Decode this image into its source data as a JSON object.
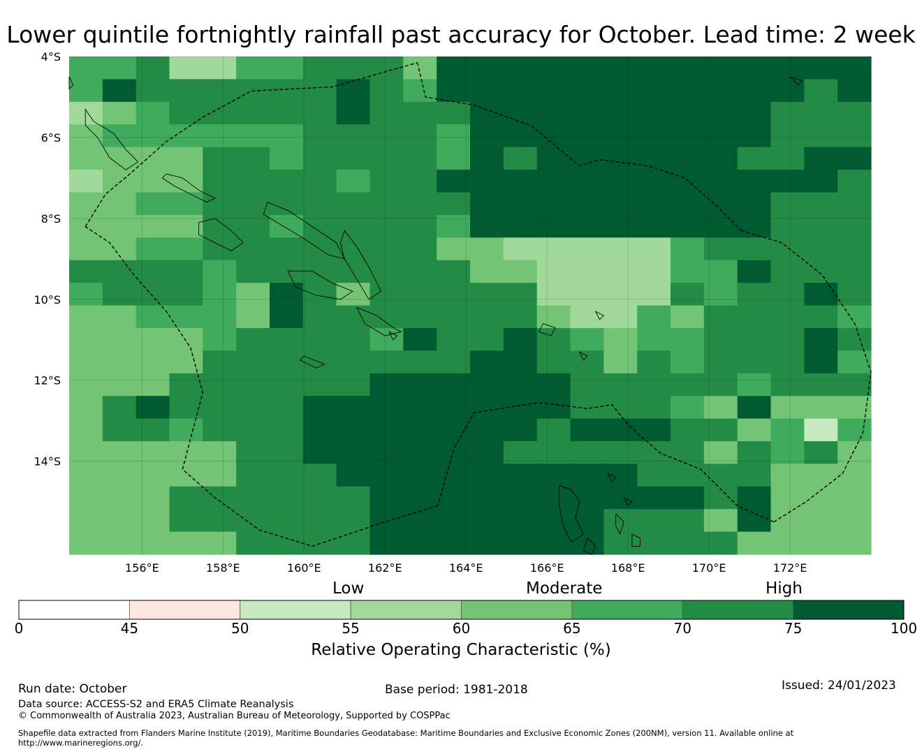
{
  "title": "Lower quintile fortnightly rainfall past accuracy for October. Lead time: 2 week",
  "map": {
    "lat_labels": [
      "4°S",
      "6°S",
      "8°S",
      "10°S",
      "12°S",
      "14°S"
    ],
    "lon_labels": [
      "156°E",
      "158°E",
      "160°E",
      "162°E",
      "164°E",
      "166°E",
      "168°E",
      "170°E",
      "172°E"
    ],
    "lat_ticks": [
      4,
      6,
      8,
      10,
      12,
      14
    ],
    "lon_ticks": [
      156,
      158,
      160,
      162,
      164,
      166,
      168,
      170,
      172
    ],
    "extent": {
      "lon_min": 154.2,
      "lon_max": 174.0,
      "lat_top": 4.0,
      "lat_bottom": 16.3
    },
    "grid_cols": 24,
    "grid_rows": 22,
    "grid_codes": [
      "556335566647777777777777",
      "576666667657777777777767",
      "345666667666777777777666",
      "455555566665777777777666",
      "444466566665767777776677",
      "344466665667777777777776",
      "445566666666777777777666",
      "444466566665777777777666",
      "445566666664433333566666",
      "666656666666443333557666",
      "566654764666663333656676",
      "445554766666664335466665",
      "444456666576676545566676",
      "444466666666776646566675",
      "444666666777777666665666",
      "467666677777777666547444",
      "466566677777776777664525",
      "444446677777766666646564",
      "444446667777777776666444",
      "444666666777777777767444",
      "444666666777777766647444",
      "444446666777777766664444"
    ],
    "eez_lines": [
      [
        [
          162.8,
          4.15
        ],
        [
          163.0,
          5.0
        ],
        [
          164.2,
          5.2
        ],
        [
          165.6,
          5.7
        ],
        [
          166.2,
          6.2
        ],
        [
          166.8,
          6.7
        ],
        [
          167.3,
          6.55
        ],
        [
          168.5,
          6.7
        ],
        [
          169.4,
          7.0
        ],
        [
          170.2,
          7.7
        ],
        [
          170.8,
          8.3
        ]
      ],
      [
        [
          170.8,
          8.3
        ],
        [
          171.8,
          8.6
        ],
        [
          172.8,
          9.4
        ],
        [
          173.6,
          10.6
        ],
        [
          174.0,
          11.8
        ],
        [
          173.8,
          13.3
        ],
        [
          173.3,
          14.3
        ],
        [
          172.4,
          15.0
        ],
        [
          171.6,
          15.5
        ]
      ],
      [
        [
          171.6,
          15.5
        ],
        [
          170.7,
          15.1
        ],
        [
          169.8,
          14.2
        ],
        [
          168.8,
          13.8
        ],
        [
          168.0,
          13.1
        ],
        [
          167.6,
          12.6
        ],
        [
          167.0,
          12.7
        ],
        [
          165.8,
          12.55
        ],
        [
          164.2,
          12.8
        ],
        [
          163.7,
          13.7
        ],
        [
          163.3,
          15.1
        ]
      ],
      [
        [
          163.3,
          15.1
        ],
        [
          162.0,
          15.5
        ],
        [
          160.2,
          16.1
        ],
        [
          158.9,
          15.7
        ],
        [
          157.8,
          14.9
        ],
        [
          157.0,
          14.2
        ],
        [
          157.5,
          12.3
        ],
        [
          157.2,
          11.2
        ],
        [
          156.6,
          10.3
        ],
        [
          155.8,
          9.4
        ],
        [
          155.2,
          8.6
        ],
        [
          154.6,
          8.2
        ]
      ],
      [
        [
          154.6,
          8.2
        ],
        [
          155.1,
          7.4
        ],
        [
          155.7,
          6.9
        ],
        [
          156.6,
          6.1
        ],
        [
          157.5,
          5.5
        ],
        [
          158.7,
          4.85
        ],
        [
          160.7,
          4.75
        ],
        [
          162.8,
          4.15
        ]
      ]
    ],
    "islands": [
      [
        [
          154.6,
          5.3
        ],
        [
          154.8,
          5.6
        ],
        [
          155.3,
          5.9
        ],
        [
          155.6,
          6.3
        ],
        [
          155.9,
          6.6
        ],
        [
          155.6,
          6.8
        ],
        [
          155.2,
          6.5
        ],
        [
          154.9,
          6.0
        ],
        [
          154.6,
          5.7
        ]
      ],
      [
        [
          156.6,
          6.9
        ],
        [
          157.0,
          7.0
        ],
        [
          157.4,
          7.3
        ],
        [
          157.8,
          7.5
        ],
        [
          157.6,
          7.6
        ],
        [
          157.2,
          7.4
        ],
        [
          156.8,
          7.2
        ],
        [
          156.5,
          7.0
        ]
      ],
      [
        [
          157.4,
          8.1
        ],
        [
          157.8,
          8.0
        ],
        [
          158.2,
          8.3
        ],
        [
          158.5,
          8.6
        ],
        [
          158.2,
          8.8
        ],
        [
          157.8,
          8.6
        ],
        [
          157.4,
          8.4
        ]
      ],
      [
        [
          159.1,
          7.6
        ],
        [
          159.6,
          7.8
        ],
        [
          160.2,
          8.2
        ],
        [
          160.8,
          8.6
        ],
        [
          161.0,
          9.0
        ],
        [
          160.6,
          8.9
        ],
        [
          160.0,
          8.5
        ],
        [
          159.5,
          8.2
        ],
        [
          159.0,
          7.9
        ]
      ],
      [
        [
          161.0,
          8.3
        ],
        [
          161.3,
          8.7
        ],
        [
          161.6,
          9.2
        ],
        [
          161.9,
          9.8
        ],
        [
          161.6,
          10.0
        ],
        [
          161.3,
          9.5
        ],
        [
          161.0,
          9.0
        ],
        [
          160.9,
          8.6
        ]
      ],
      [
        [
          159.6,
          9.3
        ],
        [
          160.2,
          9.3
        ],
        [
          160.7,
          9.6
        ],
        [
          161.2,
          9.8
        ],
        [
          160.9,
          10.0
        ],
        [
          160.3,
          9.9
        ],
        [
          159.8,
          9.7
        ]
      ],
      [
        [
          161.3,
          10.2
        ],
        [
          161.8,
          10.4
        ],
        [
          162.2,
          10.7
        ],
        [
          162.4,
          10.8
        ],
        [
          162.0,
          10.9
        ],
        [
          161.5,
          10.6
        ]
      ],
      [
        [
          166.3,
          14.6
        ],
        [
          166.6,
          14.7
        ],
        [
          166.8,
          15.0
        ],
        [
          166.7,
          15.4
        ],
        [
          166.9,
          15.8
        ],
        [
          166.6,
          16.0
        ],
        [
          166.4,
          15.6
        ],
        [
          166.3,
          15.1
        ]
      ],
      [
        [
          167.0,
          15.9
        ],
        [
          167.2,
          16.1
        ],
        [
          167.1,
          16.3
        ],
        [
          166.9,
          16.2
        ]
      ],
      [
        [
          168.1,
          15.8
        ],
        [
          168.3,
          15.9
        ],
        [
          168.3,
          16.1
        ],
        [
          168.1,
          16.1
        ]
      ],
      [
        [
          167.7,
          15.3
        ],
        [
          167.9,
          15.5
        ],
        [
          167.8,
          15.8
        ],
        [
          167.7,
          15.6
        ]
      ],
      [
        [
          165.9,
          10.6
        ],
        [
          166.2,
          10.7
        ],
        [
          166.1,
          10.9
        ],
        [
          165.8,
          10.8
        ]
      ],
      [
        [
          166.8,
          11.3
        ],
        [
          167.0,
          11.4
        ],
        [
          166.9,
          11.5
        ]
      ],
      [
        [
          160.0,
          11.4
        ],
        [
          160.5,
          11.6
        ],
        [
          160.3,
          11.7
        ],
        [
          159.9,
          11.5
        ]
      ],
      [
        [
          167.5,
          14.3
        ],
        [
          167.7,
          14.4
        ],
        [
          167.6,
          14.5
        ]
      ],
      [
        [
          167.9,
          14.9
        ],
        [
          168.1,
          15.0
        ],
        [
          168.0,
          15.1
        ]
      ],
      [
        [
          172.0,
          4.5
        ],
        [
          172.3,
          4.6
        ],
        [
          172.2,
          4.7
        ]
      ],
      [
        [
          162.1,
          10.8
        ],
        [
          162.3,
          10.9
        ],
        [
          162.2,
          11.0
        ]
      ],
      [
        [
          167.2,
          10.3
        ],
        [
          167.4,
          10.4
        ],
        [
          167.3,
          10.5
        ]
      ],
      [
        [
          154.2,
          4.5
        ],
        [
          154.3,
          4.7
        ],
        [
          154.2,
          4.8
        ]
      ]
    ]
  },
  "colorbar": {
    "categories": [
      "Low",
      "Moderate",
      "High"
    ],
    "ticks": [
      "0",
      "45",
      "50",
      "55",
      "60",
      "65",
      "70",
      "75",
      "100"
    ],
    "label": "Relative Operating Characteristic (%)",
    "colors": [
      "#ffffff",
      "#fee8de",
      "#c7e9c0",
      "#a1d99b",
      "#74c476",
      "#41ab5d",
      "#238b45",
      "#005a32"
    ]
  },
  "footer": {
    "run_date": "Run date: October",
    "base_period": "Base period: 1981-2018",
    "issued": "Issued: 24/01/2023",
    "data_source": "Data source: ACCESS-S2 and ERA5 Climate Reanalysis",
    "copyright": "© Commonwealth of Australia 2023, Australian Bureau of Meteorology, Supported by COSPPac",
    "shapefile_line1": "Shapefile data extracted from Flanders Marine Institute (2019), Maritime Boundaries Geodatabase: Maritime Boundaries and Exclusive Economic Zones (200NM), version 11. Available online at",
    "shapefile_line2": "http://www.marineregions.org/."
  }
}
